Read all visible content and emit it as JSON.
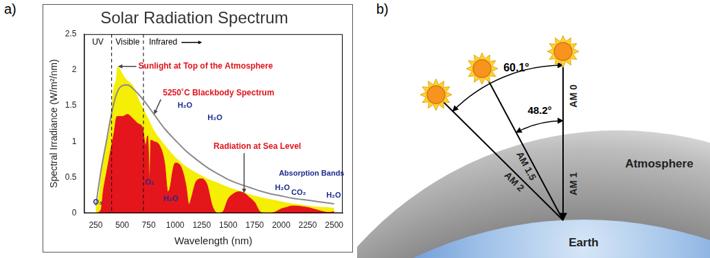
{
  "panel_labels": [
    "a)",
    "b)"
  ],
  "chart_data": {
    "type": "line",
    "title": "Solar Radiation Spectrum",
    "x_label": "Wavelength (nm)",
    "y_label": "Spectral Irradiance (W/m²/nm)",
    "xlim": [
      140,
      2580
    ],
    "xticks": [
      250,
      500,
      750,
      1000,
      1250,
      1500,
      1750,
      2000,
      2250,
      2500
    ],
    "ylim": [
      0,
      2.5
    ],
    "yticks": [
      0,
      0.5,
      1,
      1.5,
      2,
      2.5
    ],
    "grid": false,
    "regions": {
      "dividers": [
        400,
        700
      ],
      "labels": [
        "UV",
        "Visible",
        "Infrared"
      ]
    },
    "annotations": [
      "O₃",
      "O₂",
      "H₂O",
      "H₂O",
      "H₂O",
      "H₂O",
      "CO₂",
      "Absorption Bands",
      "H₂O"
    ],
    "series": [
      {
        "name": "5250˚C Blackbody Spectrum",
        "type": "line",
        "color": "#8a8a8a",
        "x": [
          250,
          300,
          350,
          400,
          450,
          500,
          550,
          600,
          700,
          800,
          900,
          1000,
          1100,
          1200,
          1300,
          1400,
          1500,
          1600,
          1700,
          1800,
          1900,
          2000,
          2100,
          2200,
          2300,
          2400,
          2500
        ],
        "values": [
          0.1,
          0.6,
          1.0,
          1.4,
          1.68,
          1.78,
          1.79,
          1.74,
          1.58,
          1.38,
          1.18,
          1.02,
          0.87,
          0.75,
          0.64,
          0.55,
          0.47,
          0.41,
          0.36,
          0.31,
          0.27,
          0.24,
          0.21,
          0.19,
          0.17,
          0.15,
          0.13
        ]
      },
      {
        "name": "Radiation at Sea Level",
        "type": "area",
        "color": "#e4161c",
        "x": [
          250,
          300,
          320,
          350,
          400,
          420,
          450,
          500,
          550,
          600,
          650,
          690,
          720,
          740,
          760,
          770,
          800,
          850,
          900,
          930,
          950,
          980,
          1000,
          1050,
          1100,
          1130,
          1150,
          1200,
          1250,
          1300,
          1350,
          1400,
          1450,
          1500,
          1550,
          1600,
          1650,
          1700,
          1750,
          1800,
          1850,
          1900,
          1950,
          2000,
          2050,
          2100,
          2150,
          2200,
          2250,
          2300,
          2350,
          2400,
          2450,
          2500
        ],
        "values": [
          0,
          0.05,
          0.3,
          0.55,
          0.95,
          1.1,
          1.35,
          1.35,
          1.38,
          1.32,
          1.25,
          1.2,
          0.95,
          1.08,
          0.4,
          1.02,
          1.0,
          0.95,
          0.7,
          0.3,
          0.35,
          0.62,
          0.7,
          0.66,
          0.4,
          0.12,
          0.2,
          0.45,
          0.48,
          0.4,
          0.1,
          0,
          0.02,
          0.2,
          0.27,
          0.3,
          0.28,
          0.22,
          0.15,
          0.02,
          0,
          0,
          0.02,
          0.06,
          0.08,
          0.1,
          0.1,
          0.09,
          0.08,
          0.06,
          0.04,
          0.02,
          0.01,
          0.02
        ]
      },
      {
        "name": "Sunlight at Top of the Atmosphere",
        "type": "area",
        "color": "#f5ee05",
        "x": [
          250,
          280,
          300,
          320,
          350,
          380,
          400,
          420,
          440,
          460,
          480,
          500,
          520,
          550,
          600,
          650,
          700,
          750,
          800,
          900,
          1000,
          1100,
          1200,
          1300,
          1400,
          1500,
          1600,
          1700,
          1800,
          1900,
          2000,
          2100,
          2200,
          2300,
          2400,
          2500
        ],
        "values": [
          0.05,
          0.25,
          0.5,
          0.75,
          1.0,
          1.15,
          1.45,
          1.75,
          1.85,
          2.05,
          2.0,
          1.95,
          1.9,
          1.85,
          1.78,
          1.6,
          1.45,
          1.3,
          1.15,
          0.95,
          0.78,
          0.65,
          0.56,
          0.48,
          0.42,
          0.36,
          0.31,
          0.26,
          0.22,
          0.19,
          0.16,
          0.13,
          0.11,
          0.09,
          0.08,
          0.07
        ]
      }
    ]
  },
  "diagram": {
    "angles": [
      "60.1°",
      "48.2°"
    ],
    "air_masses": [
      "AM 0",
      "AM 1",
      "AM 1.5",
      "AM 2"
    ],
    "labels": [
      "Atmosphere",
      "Earth"
    ]
  }
}
